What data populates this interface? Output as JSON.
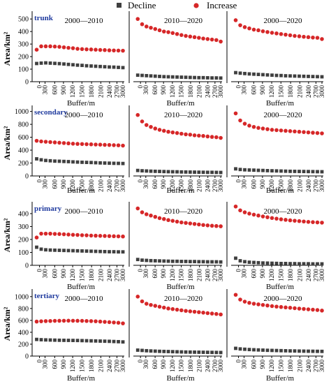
{
  "legend": {
    "decline_label": "Decline",
    "increase_label": "Increase",
    "decline_color": "#3f3f3f",
    "increase_color": "#d62728"
  },
  "chart_data": [
    {
      "type": "scatter",
      "row_label": "trunk",
      "ylabel": "Area/km²",
      "xlabel": "Buffer/m",
      "x_ticks": [
        "0",
        "300",
        "600",
        "900",
        "1200",
        "1500",
        "1800",
        "2100",
        "2400",
        "2700",
        "3000"
      ],
      "y_ticks": [
        "0",
        "100",
        "200",
        "300",
        "400",
        "500"
      ],
      "ylim": [
        0,
        540
      ],
      "xlim": [
        0,
        3000
      ],
      "buffers": [
        150,
        300,
        450,
        600,
        750,
        900,
        1050,
        1200,
        1350,
        1500,
        1650,
        1800,
        1950,
        2100,
        2250,
        2400,
        2550,
        2700,
        2850,
        3000
      ],
      "panels": [
        {
          "title": "2000—2010",
          "increase": [
            255,
            282,
            282,
            282,
            280,
            278,
            274,
            270,
            267,
            262,
            260,
            258,
            257,
            255,
            253,
            252,
            250,
            249,
            248,
            247
          ],
          "decline": [
            145,
            148,
            150,
            148,
            146,
            144,
            141,
            138,
            135,
            132,
            130,
            127,
            125,
            123,
            121,
            119,
            117,
            116,
            114,
            112
          ]
        },
        {
          "title": "2010—2020",
          "increase": [
            500,
            458,
            440,
            430,
            420,
            410,
            400,
            395,
            388,
            380,
            372,
            365,
            360,
            355,
            350,
            344,
            340,
            336,
            332,
            320
          ],
          "decline": [
            52,
            50,
            48,
            46,
            44,
            42,
            40,
            39,
            38,
            37,
            36,
            35,
            34,
            33,
            32,
            32,
            31,
            30,
            30,
            29
          ]
        },
        {
          "title": "2000—2020",
          "increase": [
            490,
            450,
            435,
            425,
            415,
            410,
            402,
            396,
            390,
            385,
            380,
            375,
            370,
            365,
            362,
            358,
            355,
            352,
            350,
            340
          ],
          "decline": [
            72,
            68,
            65,
            62,
            60,
            58,
            56,
            54,
            52,
            50,
            49,
            47,
            46,
            45,
            44,
            43,
            42,
            41,
            40,
            39
          ]
        }
      ]
    },
    {
      "type": "scatter",
      "row_label": "secondary",
      "ylabel": "Area/km²",
      "xlabel": "Buffer/m",
      "x_ticks": [
        "0",
        "300",
        "600",
        "900",
        "1200",
        "1500",
        "1800",
        "2100",
        "2400",
        "2700",
        "3000"
      ],
      "y_ticks": [
        "0",
        "200",
        "400",
        "600",
        "800",
        "1000"
      ],
      "ylim": [
        0,
        1050
      ],
      "xlim": [
        0,
        3000
      ],
      "buffers": [
        150,
        300,
        450,
        600,
        750,
        900,
        1050,
        1200,
        1350,
        1500,
        1650,
        1800,
        1950,
        2100,
        2250,
        2400,
        2550,
        2700,
        2850,
        3000
      ],
      "panels": [
        {
          "title": "2000—2010",
          "increase": [
            545,
            535,
            530,
            525,
            520,
            515,
            510,
            505,
            500,
            497,
            495,
            492,
            490,
            487,
            485,
            482,
            480,
            477,
            475,
            470
          ],
          "decline": [
            265,
            250,
            240,
            235,
            230,
            228,
            225,
            222,
            218,
            215,
            212,
            210,
            208,
            205,
            202,
            200,
            198,
            196,
            195,
            193
          ]
        },
        {
          "title": "2010—2020",
          "increase": [
            945,
            845,
            790,
            760,
            735,
            715,
            700,
            685,
            675,
            665,
            655,
            645,
            640,
            630,
            625,
            620,
            612,
            605,
            600,
            590
          ],
          "decline": [
            85,
            80,
            77,
            74,
            72,
            70,
            68,
            66,
            65,
            64,
            62,
            61,
            60,
            59,
            58,
            57,
            56,
            56,
            55,
            54
          ]
        },
        {
          "title": "2000—2020",
          "increase": [
            970,
            860,
            810,
            780,
            760,
            745,
            735,
            725,
            715,
            710,
            705,
            700,
            695,
            690,
            685,
            680,
            675,
            670,
            665,
            660
          ],
          "decline": [
            110,
            100,
            95,
            92,
            90,
            87,
            85,
            82,
            80,
            78,
            76,
            74,
            72,
            71,
            70,
            69,
            68,
            67,
            66,
            65
          ]
        }
      ]
    },
    {
      "type": "scatter",
      "row_label": "primary",
      "ylabel": "Area/km²",
      "xlabel": "Buffer/m",
      "x_ticks": [
        "0",
        "300",
        "600",
        "900",
        "1200",
        "1500",
        "1800",
        "2100",
        "2400",
        "2700",
        "3000"
      ],
      "y_ticks": [
        "0",
        "100",
        "200",
        "300",
        "400"
      ],
      "ylim": [
        0,
        470
      ],
      "xlim": [
        0,
        3000
      ],
      "buffers": [
        150,
        300,
        450,
        600,
        750,
        900,
        1050,
        1200,
        1350,
        1500,
        1650,
        1800,
        1950,
        2100,
        2250,
        2400,
        2550,
        2700,
        2850,
        3000
      ],
      "panels": [
        {
          "title": "2000—2010",
          "increase": [
            215,
            245,
            245,
            245,
            243,
            242,
            240,
            238,
            236,
            235,
            233,
            232,
            230,
            229,
            228,
            227,
            226,
            225,
            224,
            223
          ],
          "decline": [
            140,
            125,
            120,
            118,
            117,
            116,
            115,
            114,
            113,
            112,
            111,
            110,
            109,
            108,
            107,
            106,
            105,
            105,
            104,
            104
          ]
        },
        {
          "title": "2010—2020",
          "increase": [
            440,
            410,
            395,
            385,
            375,
            365,
            358,
            350,
            344,
            338,
            332,
            328,
            324,
            320,
            316,
            312,
            309,
            306,
            304,
            302
          ],
          "decline": [
            45,
            40,
            38,
            36,
            35,
            34,
            33,
            32,
            31,
            31,
            30,
            30,
            29,
            29,
            28,
            28,
            27,
            27,
            27,
            26
          ]
        },
        {
          "title": "2000—2020",
          "increase": [
            455,
            425,
            410,
            400,
            392,
            385,
            378,
            372,
            366,
            361,
            356,
            352,
            348,
            345,
            342,
            339,
            336,
            334,
            332,
            330
          ],
          "decline": [
            55,
            35,
            28,
            24,
            22,
            20,
            18,
            17,
            16,
            15,
            14,
            14,
            13,
            13,
            12,
            12,
            12,
            11,
            11,
            11
          ]
        }
      ]
    },
    {
      "type": "scatter",
      "row_label": "tertiary",
      "ylabel": "Area/km²",
      "xlabel": "Buffer/m",
      "x_ticks": [
        "0",
        "300",
        "600",
        "900",
        "1200",
        "1500",
        "1800",
        "2100",
        "2400",
        "2700",
        "3000"
      ],
      "y_ticks": [
        "0",
        "200",
        "400",
        "600",
        "800",
        "1000"
      ],
      "ylim": [
        0,
        1080
      ],
      "xlim": [
        0,
        3000
      ],
      "buffers": [
        150,
        300,
        450,
        600,
        750,
        900,
        1050,
        1200,
        1350,
        1500,
        1650,
        1800,
        1950,
        2100,
        2250,
        2400,
        2550,
        2700,
        2850,
        3000
      ],
      "panels": [
        {
          "title": "2000—2010",
          "increase": [
            580,
            585,
            588,
            590,
            592,
            593,
            594,
            595,
            594,
            593,
            592,
            590,
            588,
            585,
            580,
            575,
            570,
            565,
            560,
            550
          ],
          "decline": [
            280,
            275,
            272,
            270,
            268,
            266,
            265,
            264,
            263,
            262,
            260,
            258,
            256,
            254,
            252,
            250,
            248,
            245,
            242,
            238
          ]
        },
        {
          "title": "2010—2020",
          "increase": [
            1000,
            920,
            880,
            860,
            845,
            830,
            815,
            800,
            790,
            780,
            770,
            760,
            752,
            745,
            738,
            730,
            722,
            715,
            708,
            700
          ],
          "decline": [
            100,
            95,
            90,
            86,
            83,
            80,
            78,
            76,
            74,
            72,
            70,
            68,
            67,
            66,
            65,
            64,
            63,
            62,
            61,
            60
          ]
        },
        {
          "title": "2000—2020",
          "increase": [
            1030,
            950,
            915,
            895,
            880,
            870,
            860,
            850,
            840,
            832,
            825,
            818,
            812,
            805,
            798,
            792,
            786,
            780,
            774,
            765
          ],
          "decline": [
            130,
            120,
            115,
            110,
            106,
            103,
            100,
            97,
            95,
            93,
            91,
            89,
            87,
            86,
            84,
            83,
            82,
            81,
            80,
            79
          ]
        }
      ]
    }
  ]
}
